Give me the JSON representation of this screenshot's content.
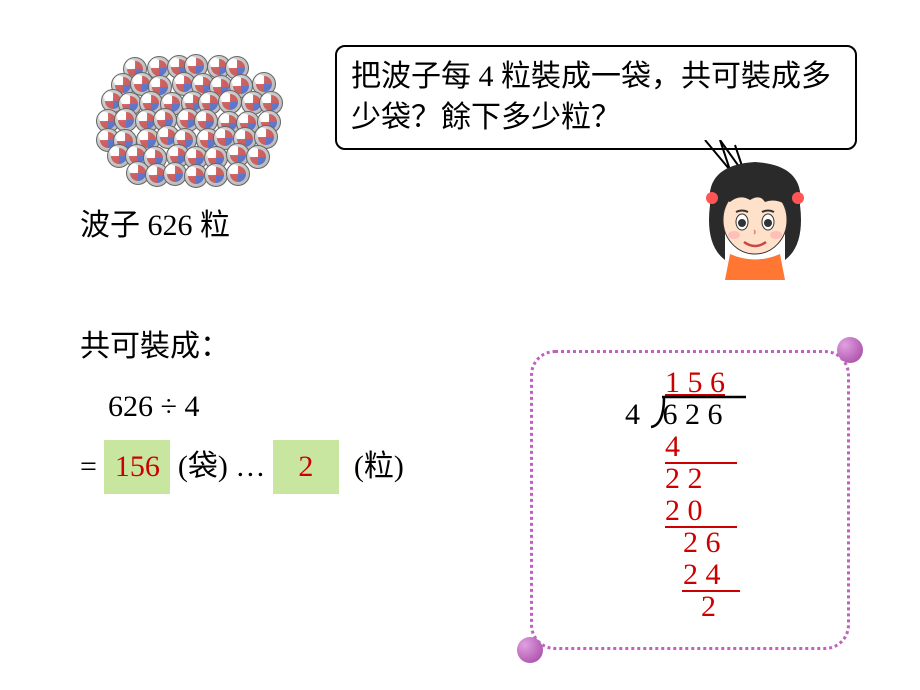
{
  "marbles_label": "波子 626 粒",
  "speech_text": "把波子每 4 粒裝成一袋，共可裝成多少袋？餘下多少粒？",
  "result": {
    "heading": "共可裝成：",
    "expression": "626 ÷ 4",
    "equals": "=",
    "quotient": "156",
    "quotient_unit": "(袋)",
    "ellipsis": "…",
    "remainder": "2",
    "remainder_unit": "(粒)"
  },
  "longdiv": {
    "quotient_digits": "1 5 6",
    "divisor": "4",
    "dividend": "6 2 6",
    "step1_sub": "4",
    "step1_res": "2 2",
    "step2_sub": "2 0",
    "step2_res": "2 6",
    "step3_sub": "2 4",
    "remainder": "2"
  },
  "colors": {
    "highlight_bg": "#c8e6a0",
    "red": "#cc0000",
    "dotted_border": "#c060c0",
    "ball": "#a040a0"
  }
}
